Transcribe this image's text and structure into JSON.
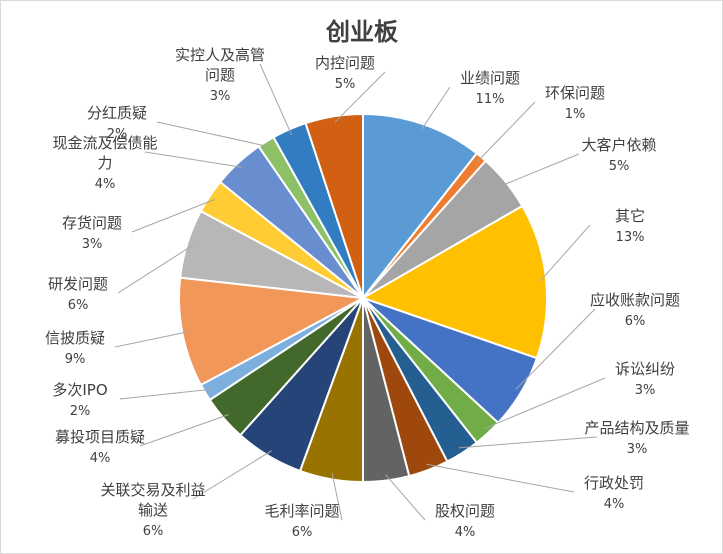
{
  "chart_data": {
    "type": "pie",
    "title": "创业板",
    "slices": [
      {
        "label": "业绩问题",
        "percent_label": "11%",
        "value": 10.5,
        "color": "#5b9bd5"
      },
      {
        "label": "环保问题",
        "percent_label": "1%",
        "value": 1.0,
        "color": "#ed7d31"
      },
      {
        "label": "大客户依赖",
        "percent_label": "5%",
        "value": 5.0,
        "color": "#a5a5a5"
      },
      {
        "label": "其它",
        "percent_label": "13%",
        "value": 13.5,
        "color": "#ffc000"
      },
      {
        "label": "应收账款问题",
        "percent_label": "6%",
        "value": 6.5,
        "color": "#4472c4"
      },
      {
        "label": "诉讼纠纷",
        "percent_label": "3%",
        "value": 2.5,
        "color": "#70ad47"
      },
      {
        "label": "产品结构及质量",
        "percent_label": "3%",
        "value": 3.0,
        "color": "#255e91"
      },
      {
        "label": "行政处罚",
        "percent_label": "4%",
        "value": 3.5,
        "color": "#9e480e"
      },
      {
        "label": "股权问题",
        "percent_label": "4%",
        "value": 4.0,
        "color": "#636363"
      },
      {
        "label": "毛利率问题",
        "percent_label": "6%",
        "value": 5.5,
        "color": "#997300"
      },
      {
        "label": "关联交易及利益输送",
        "percent_label": "6%",
        "value": 6.0,
        "color": "#264478"
      },
      {
        "label": "募投项目质疑",
        "percent_label": "4%",
        "value": 4.0,
        "color": "#43682b"
      },
      {
        "label": "多次IPO",
        "percent_label": "2%",
        "value": 1.5,
        "color": "#7cafdd"
      },
      {
        "label": "信披质疑",
        "percent_label": "9%",
        "value": 9.5,
        "color": "#f1975a"
      },
      {
        "label": "研发问题",
        "percent_label": "6%",
        "value": 6.0,
        "color": "#b7b7b7"
      },
      {
        "label": "存货问题",
        "percent_label": "3%",
        "value": 3.0,
        "color": "#ffcd33"
      },
      {
        "label": "现金流及偿债能力",
        "percent_label": "4%",
        "value": 4.5,
        "color": "#698ed0"
      },
      {
        "label": "分红质疑",
        "percent_label": "2%",
        "value": 1.5,
        "color": "#8cc168"
      },
      {
        "label": "实控人及高管问题",
        "percent_label": "3%",
        "value": 3.0,
        "color": "#327dc2"
      },
      {
        "label": "内控问题",
        "percent_label": "5%",
        "value": 5.0,
        "color": "#d26012"
      }
    ]
  }
}
